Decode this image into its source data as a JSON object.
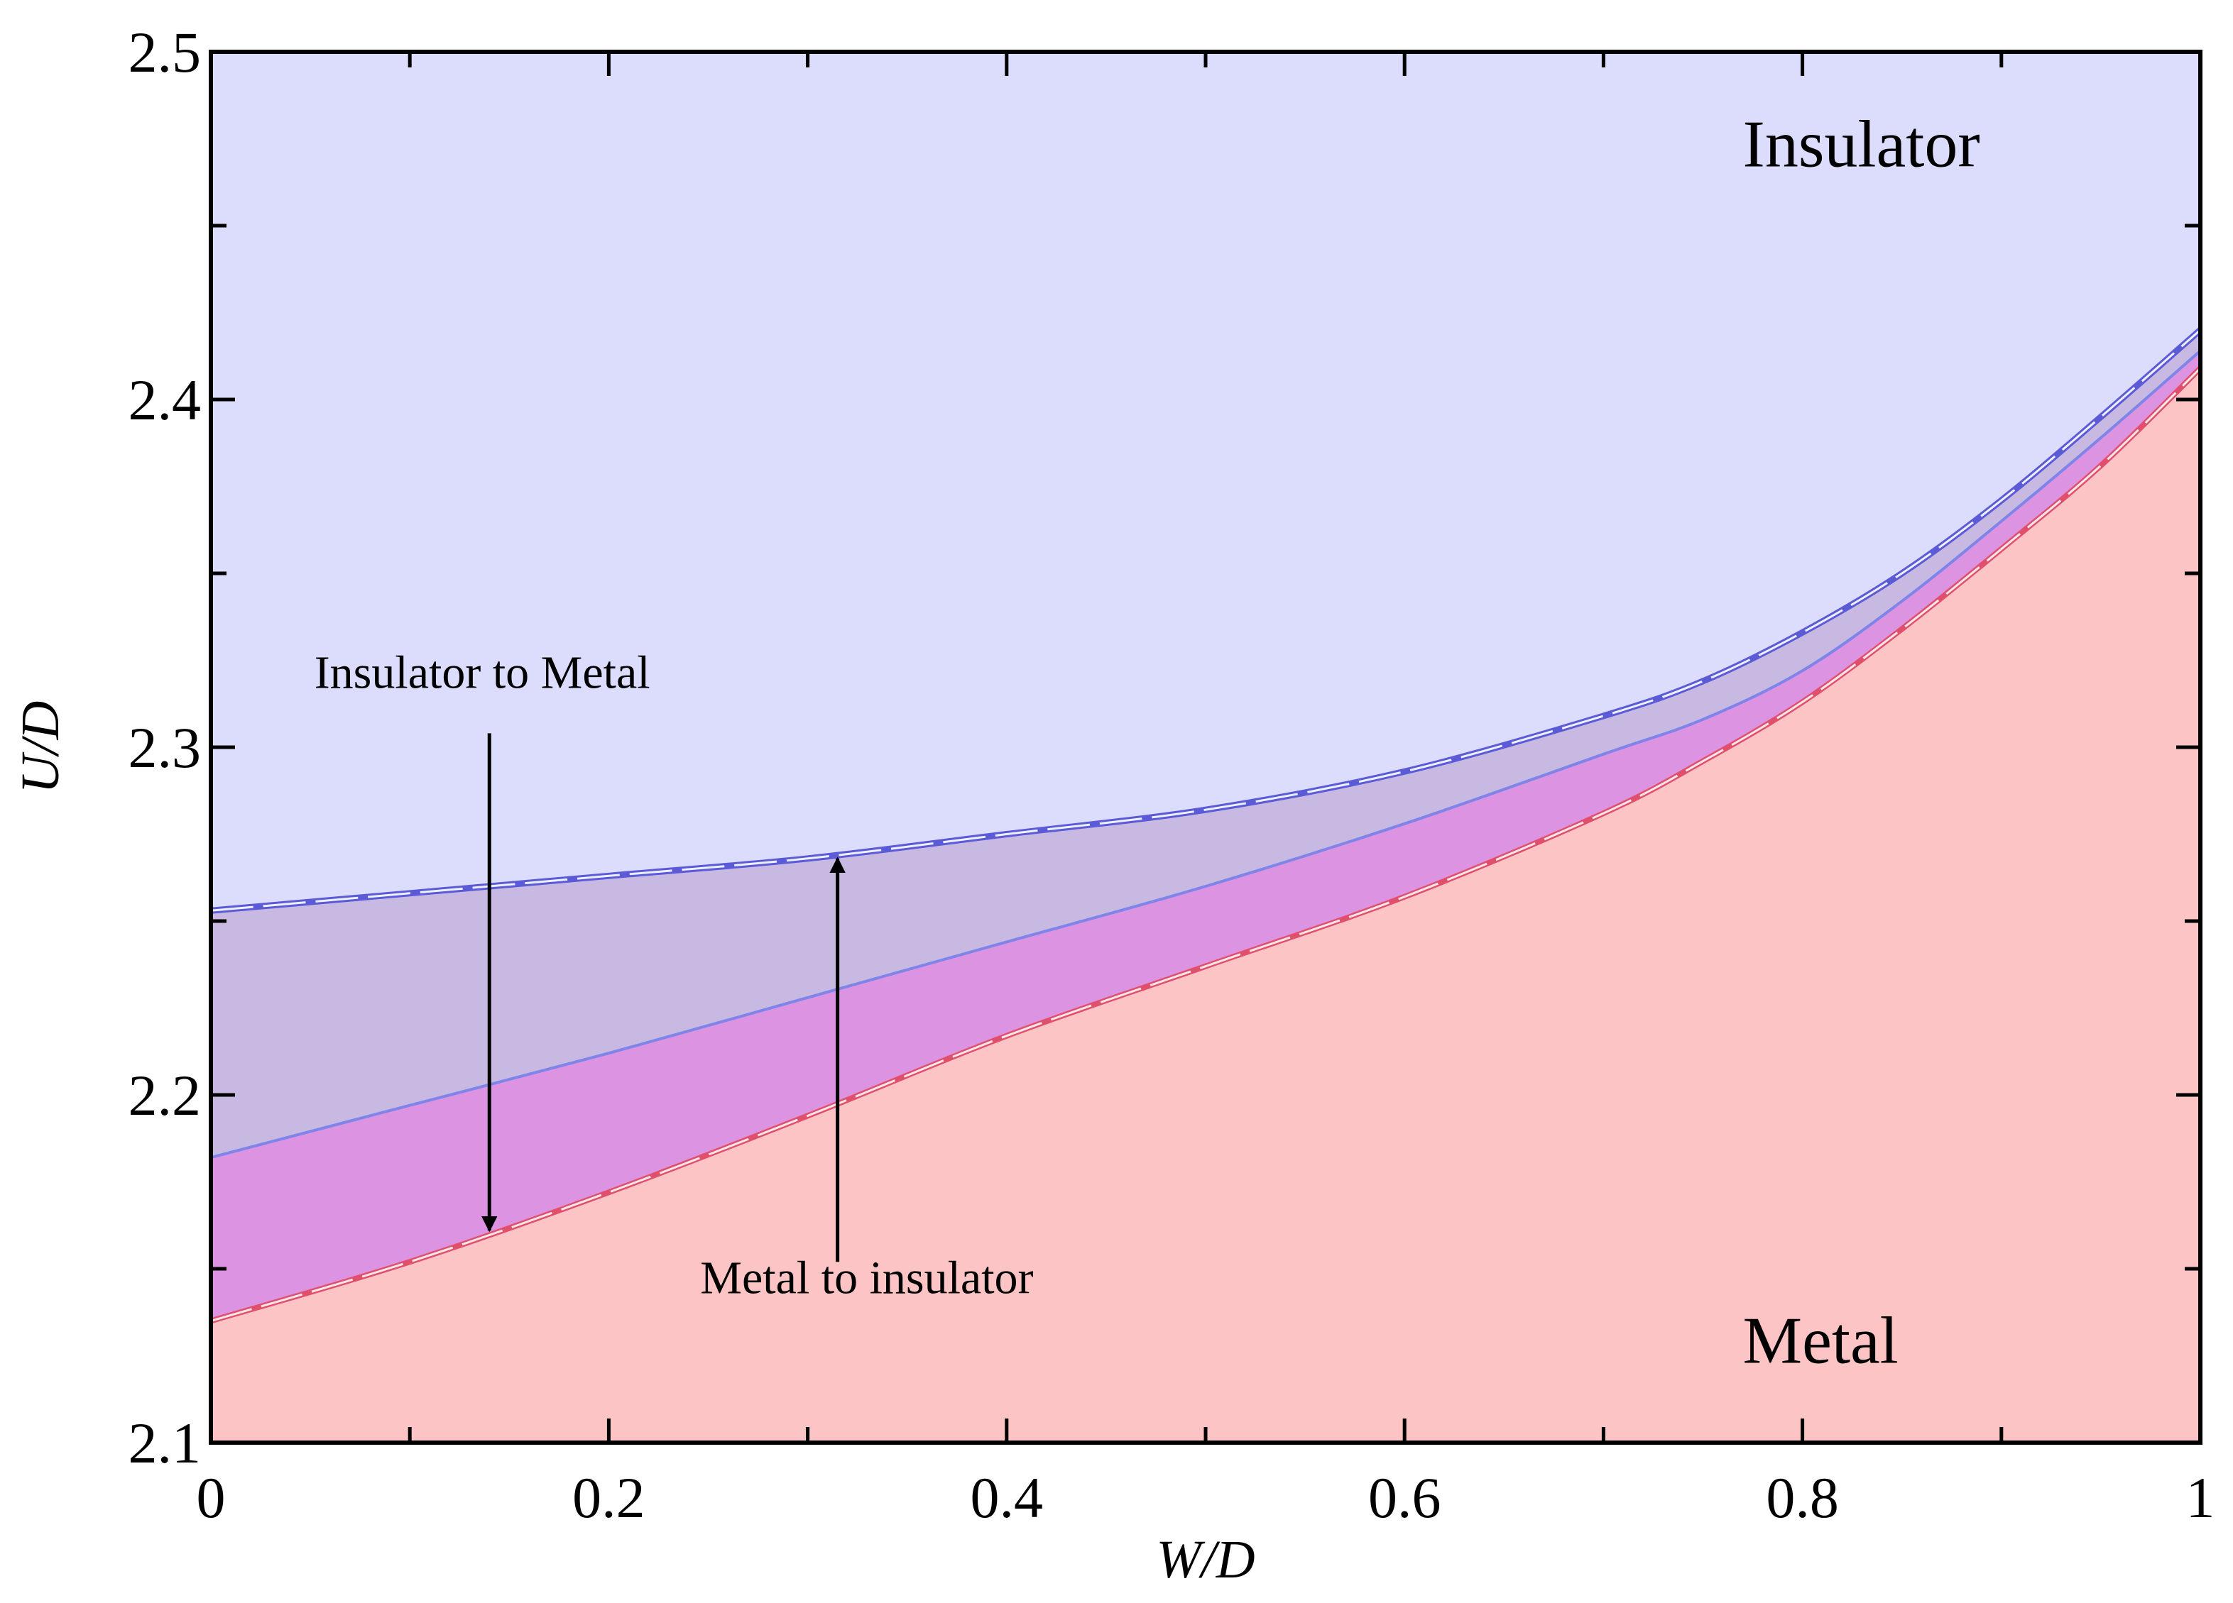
{
  "chart_data": {
    "type": "area",
    "title": "",
    "xlabel": "W/D",
    "ylabel": "U/D",
    "xlim": [
      0,
      1
    ],
    "ylim": [
      2.1,
      2.5
    ],
    "x_ticks": [
      "0",
      "0.2",
      "0.4",
      "0.6",
      "0.8",
      "1"
    ],
    "y_ticks": [
      "2.1",
      "2.2",
      "2.3",
      "2.4",
      "2.5"
    ],
    "grid": false,
    "legend": "none",
    "colors": {
      "insulator_fill": "#dcdcfc",
      "metal_fill": "#fcc4c4",
      "coexistence_fill": "#c8b9e2",
      "overlap_fill": "#dc94e2",
      "upper_line": "#5b5bd8",
      "middle_line": "#7e84e8",
      "lower_line": "#e0506c"
    },
    "series": [
      {
        "role": "upper-boundary",
        "x": [
          0,
          0.1,
          0.2,
          0.3,
          0.4,
          0.5,
          0.6,
          0.7,
          0.75,
          0.8,
          0.85,
          0.9,
          0.95,
          1.0
        ],
        "y": [
          2.253,
          2.258,
          2.263,
          2.268,
          2.275,
          2.282,
          2.293,
          2.309,
          2.319,
          2.333,
          2.35,
          2.371,
          2.395,
          2.42
        ]
      },
      {
        "role": "middle-boundary",
        "x": [
          0,
          0.1,
          0.2,
          0.3,
          0.4,
          0.5,
          0.6,
          0.7,
          0.75,
          0.8,
          0.85,
          0.9,
          0.95,
          1.0
        ],
        "y": [
          2.182,
          2.197,
          2.212,
          2.228,
          2.244,
          2.26,
          2.278,
          2.298,
          2.308,
          2.322,
          2.342,
          2.365,
          2.389,
          2.414
        ]
      },
      {
        "role": "lower-boundary",
        "x": [
          0,
          0.1,
          0.2,
          0.3,
          0.4,
          0.5,
          0.6,
          0.7,
          0.75,
          0.8,
          0.85,
          0.9,
          0.95,
          1.0
        ],
        "y": [
          2.135,
          2.152,
          2.172,
          2.194,
          2.217,
          2.237,
          2.257,
          2.281,
          2.296,
          2.313,
          2.334,
          2.357,
          2.381,
          2.409
        ]
      }
    ],
    "annotations": {
      "insulator_label": "Insulator",
      "metal_label": "Metal",
      "down_arrow_label": "Insulator to Metal",
      "up_arrow_label": "Metal to insulator"
    },
    "arrows": [
      {
        "x": 0.14,
        "y_from": 2.304,
        "y_to": 2.161
      },
      {
        "x": 0.315,
        "y_from": 2.152,
        "y_to": 2.268
      }
    ]
  }
}
